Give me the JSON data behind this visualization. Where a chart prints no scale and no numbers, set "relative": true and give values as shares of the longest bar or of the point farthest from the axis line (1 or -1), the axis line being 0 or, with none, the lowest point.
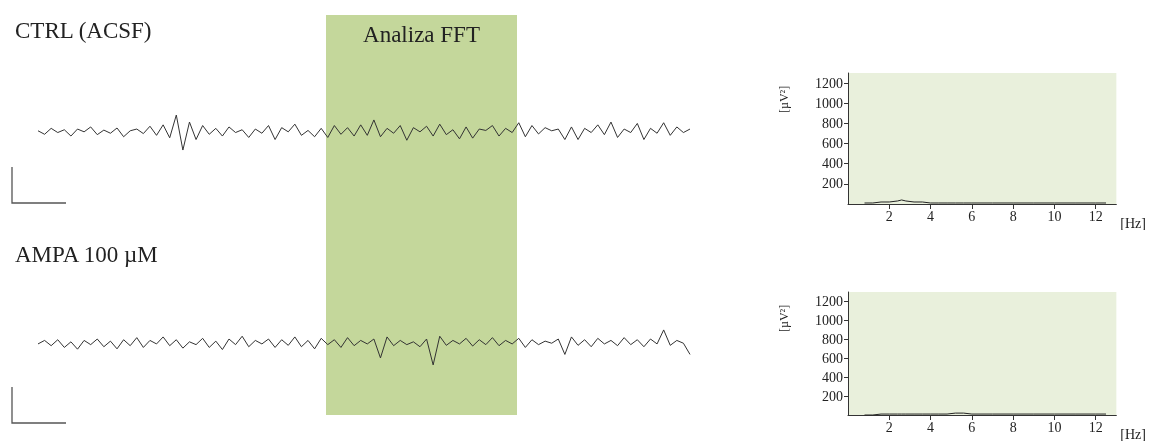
{
  "chart_data": [
    {
      "type": "line",
      "title": "CTRL (ACSF)",
      "relative": true,
      "annotations": [
        "Analiza FFT"
      ],
      "categories": [
        null,
        null,
        null,
        null,
        null,
        null,
        null,
        null,
        null,
        null,
        null,
        null,
        null,
        null,
        null,
        null,
        null,
        null,
        null,
        null,
        null,
        null,
        null,
        null,
        null,
        null,
        null,
        null,
        null,
        null,
        null,
        null,
        null,
        null,
        null,
        null,
        null,
        null,
        null,
        null,
        null,
        null,
        null,
        null,
        null,
        null,
        null,
        null,
        null,
        null,
        null,
        null,
        null,
        null,
        null,
        null,
        null,
        null,
        null,
        null,
        null,
        null,
        null,
        null,
        null,
        null,
        null,
        null,
        null,
        null,
        null,
        null,
        null,
        null,
        null,
        null,
        null,
        null,
        null,
        null,
        null,
        null,
        null,
        null,
        null,
        null,
        null,
        null,
        null,
        null,
        null,
        null,
        null,
        null,
        null,
        null,
        null,
        null,
        null,
        null
      ],
      "series": [
        {
          "color": "#333333",
          "values": [
            0.55,
            0.45,
            0.62,
            0.5,
            0.58,
            0.4,
            0.6,
            0.52,
            0.66,
            0.44,
            0.57,
            0.48,
            0.63,
            0.38,
            0.55,
            0.6,
            0.47,
            0.68,
            0.42,
            0.72,
            0.35,
            1,
            0,
            0.8,
            0.3,
            0.7,
            0.45,
            0.62,
            0.4,
            0.66,
            0.5,
            0.58,
            0.36,
            0.6,
            0.48,
            0.7,
            0.3,
            0.64,
            0.52,
            0.74,
            0.42,
            0.56,
            0.38,
            0.62,
            0.36,
            0.7,
            0.45,
            0.64,
            0.4,
            0.72,
            0.42,
            0.86,
            0.38,
            0.62,
            0.48,
            0.7,
            0.28,
            0.64,
            0.52,
            0.68,
            0.4,
            0.74,
            0.44,
            0.58,
            0.32,
            0.66,
            0.34,
            0.6,
            0.56,
            0.7,
            0.4,
            0.62,
            0.5,
            0.78,
            0.38,
            0.7,
            0.46,
            0.64,
            0.55,
            0.6,
            0.3,
            0.66,
            0.3,
            0.62,
            0.5,
            0.72,
            0.44,
            0.8,
            0.36,
            0.6,
            0.5,
            0.76,
            0.3,
            0.62,
            0.48,
            0.78,
            0.42,
            0.66,
            0.5,
            0.6
          ]
        }
      ]
    },
    {
      "type": "line",
      "xlabel": "[Hz]",
      "ylabel": "[µV²]",
      "xlim": [
        0,
        13
      ],
      "xticks": [
        2,
        4,
        6,
        8,
        10,
        12
      ],
      "ylim": [
        0,
        1300
      ],
      "yticks": [
        200,
        400,
        600,
        800,
        1000,
        1200
      ],
      "x": [
        0.8,
        1.2,
        1.6,
        2,
        2.4,
        2.6,
        2.8,
        3.2,
        3.6,
        4,
        4.4,
        4.8,
        5.2,
        5.6,
        6,
        7,
        8,
        9,
        10,
        11,
        12,
        12.5
      ],
      "series": [
        {
          "color": "#222222",
          "values": [
            10,
            10,
            20,
            20,
            30,
            40,
            30,
            20,
            20,
            10,
            10,
            10,
            10,
            10,
            10,
            10,
            10,
            10,
            10,
            10,
            10,
            10
          ]
        }
      ]
    },
    {
      "type": "line",
      "title": "AMPA 100 µM",
      "relative": true,
      "categories": [
        null,
        null,
        null,
        null,
        null,
        null,
        null,
        null,
        null,
        null,
        null,
        null,
        null,
        null,
        null,
        null,
        null,
        null,
        null,
        null,
        null,
        null,
        null,
        null,
        null,
        null,
        null,
        null,
        null,
        null,
        null,
        null,
        null,
        null,
        null,
        null,
        null,
        null,
        null,
        null,
        null,
        null,
        null,
        null,
        null,
        null,
        null,
        null,
        null,
        null,
        null,
        null,
        null,
        null,
        null,
        null,
        null,
        null,
        null,
        null,
        null,
        null,
        null,
        null,
        null,
        null,
        null,
        null,
        null,
        null,
        null,
        null,
        null,
        null,
        null,
        null,
        null,
        null,
        null,
        null,
        null,
        null,
        null,
        null,
        null,
        null,
        null,
        null,
        null,
        null,
        null,
        null,
        null,
        null,
        null,
        null,
        null,
        null,
        null,
        null
      ],
      "series": [
        {
          "color": "#333333",
          "values": [
            0.6,
            0.7,
            0.55,
            0.72,
            0.5,
            0.66,
            0.45,
            0.7,
            0.58,
            0.74,
            0.52,
            0.68,
            0.46,
            0.72,
            0.55,
            0.78,
            0.5,
            0.7,
            0.6,
            0.8,
            0.55,
            0.72,
            0.48,
            0.66,
            0.58,
            0.76,
            0.5,
            0.68,
            0.44,
            0.74,
            0.58,
            0.82,
            0.52,
            0.7,
            0.6,
            0.74,
            0.5,
            0.72,
            0.56,
            0.8,
            0.52,
            0.7,
            0.46,
            0.76,
            0.58,
            0.72,
            0.5,
            0.78,
            0.55,
            0.7,
            0.6,
            0.74,
            0.2,
            0.8,
            0.55,
            0.7,
            0.58,
            0.66,
            0.52,
            0.74,
            0,
            0.82,
            0.56,
            0.7,
            0.6,
            0.76,
            0.54,
            0.72,
            0.58,
            0.78,
            0.55,
            0.7,
            0.6,
            0.76,
            0.5,
            0.72,
            0.58,
            0.68,
            0.62,
            0.74,
            0.3,
            0.8,
            0.56,
            0.72,
            0.52,
            0.76,
            0.6,
            0.7,
            0.55,
            0.78,
            0.58,
            0.72,
            0.52,
            0.74,
            0.6,
            1,
            0.56,
            0.7,
            0.62,
            0.3
          ]
        }
      ]
    },
    {
      "type": "line",
      "xlabel": "[Hz]",
      "ylabel": "[µV²]",
      "xlim": [
        0,
        13
      ],
      "xticks": [
        2,
        4,
        6,
        8,
        10,
        12
      ],
      "ylim": [
        0,
        1300
      ],
      "yticks": [
        200,
        400,
        600,
        800,
        1000,
        1200
      ],
      "x": [
        0.8,
        1.2,
        1.6,
        2,
        2.4,
        2.6,
        2.8,
        3.2,
        3.6,
        4,
        4.4,
        4.8,
        5.2,
        5.6,
        6,
        7,
        8,
        9,
        10,
        11,
        12,
        12.5
      ],
      "series": [
        {
          "color": "#222222",
          "values": [
            0,
            0,
            10,
            10,
            10,
            10,
            10,
            10,
            10,
            10,
            10,
            10,
            20,
            20,
            10,
            10,
            10,
            10,
            10,
            10,
            10,
            10
          ]
        }
      ]
    }
  ]
}
